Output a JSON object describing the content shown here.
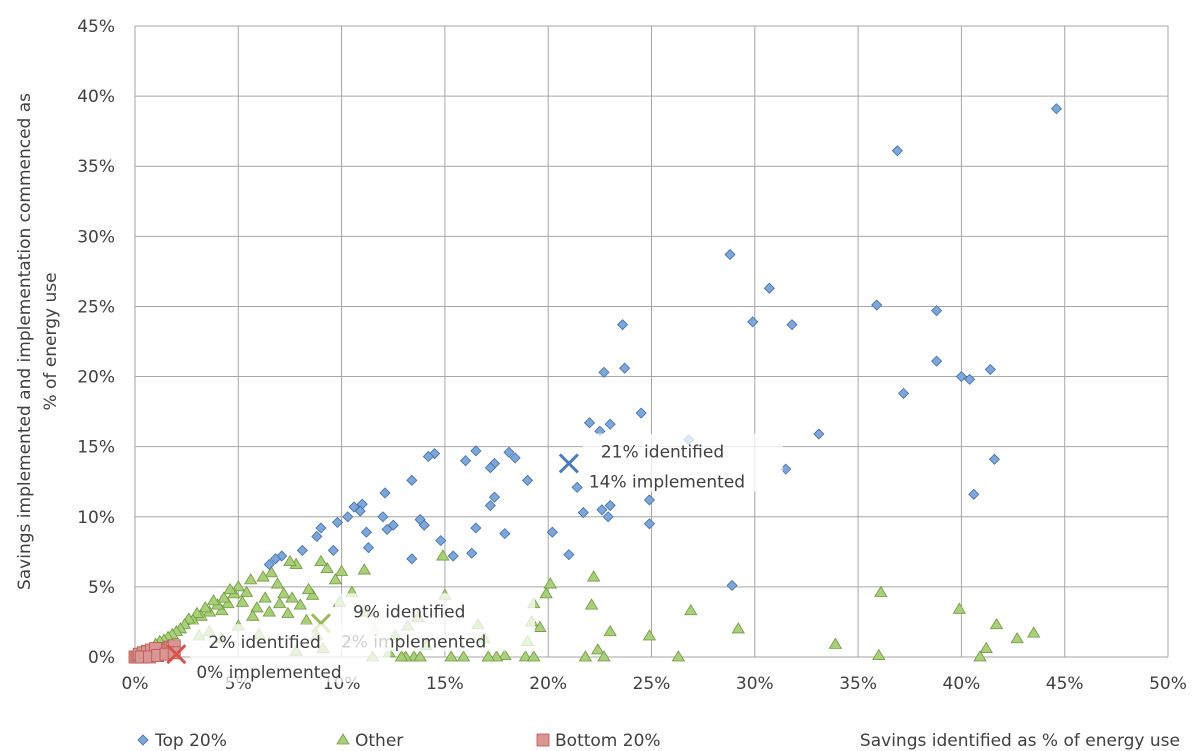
{
  "chart_data": {
    "type": "scatter",
    "xlabel": "Savings identified as % of energy use",
    "ylabel": "Savings implemented and implementation commenced as % of energy use",
    "xlim": [
      0,
      50
    ],
    "ylim": [
      0,
      45
    ],
    "x_ticks": [
      "0%",
      "5%",
      "10%",
      "15%",
      "20%",
      "25%",
      "30%",
      "35%",
      "40%",
      "45%",
      "50%"
    ],
    "y_ticks": [
      "0%",
      "5%",
      "10%",
      "15%",
      "20%",
      "25%",
      "30%",
      "35%",
      "40%",
      "45%"
    ],
    "grid": true,
    "legend_placement": "bottom-left",
    "series": [
      {
        "name": "Top 20%",
        "marker": "diamond",
        "color": "#7ea6d8",
        "points": [
          [
            44.6,
            39.1
          ],
          [
            36.9,
            36.1
          ],
          [
            28.8,
            28.7
          ],
          [
            30.7,
            26.3
          ],
          [
            29.9,
            23.9
          ],
          [
            31.8,
            23.7
          ],
          [
            23.6,
            23.7
          ],
          [
            35.9,
            25.1
          ],
          [
            38.8,
            24.7
          ],
          [
            38.8,
            21.1
          ],
          [
            41.4,
            20.5
          ],
          [
            40,
            20
          ],
          [
            40.4,
            19.8
          ],
          [
            37.2,
            18.8
          ],
          [
            23.7,
            20.6
          ],
          [
            22.7,
            20.3
          ],
          [
            24.5,
            17.4
          ],
          [
            22,
            16.7
          ],
          [
            23,
            16.6
          ],
          [
            22.5,
            16.1
          ],
          [
            33.1,
            15.9
          ],
          [
            26.8,
            15.5
          ],
          [
            41.6,
            14.1
          ],
          [
            31.5,
            13.4
          ],
          [
            40.6,
            11.6
          ],
          [
            24.9,
            11.2
          ],
          [
            21.4,
            12.1
          ],
          [
            23,
            10.8
          ],
          [
            22.6,
            10.5
          ],
          [
            22.9,
            10
          ],
          [
            21.7,
            10.3
          ],
          [
            24.9,
            9.5
          ],
          [
            21,
            7.3
          ],
          [
            20.2,
            8.9
          ],
          [
            28.9,
            5.1
          ],
          [
            18.1,
            14.6
          ],
          [
            18.4,
            14.2
          ],
          [
            16.5,
            14.7
          ],
          [
            16,
            14
          ],
          [
            17.4,
            13.8
          ],
          [
            17.2,
            13.5
          ],
          [
            19,
            12.6
          ],
          [
            17.4,
            11.4
          ],
          [
            17.2,
            10.8
          ],
          [
            17.9,
            8.8
          ],
          [
            16.5,
            9.2
          ],
          [
            16.3,
            7.4
          ],
          [
            14.5,
            14.5
          ],
          [
            14.2,
            14.3
          ],
          [
            13.4,
            12.6
          ],
          [
            13.8,
            9.8
          ],
          [
            14,
            9.4
          ],
          [
            14.8,
            8.3
          ],
          [
            15.4,
            7.2
          ],
          [
            13.4,
            7
          ],
          [
            12.1,
            11.7
          ],
          [
            11,
            10.9
          ],
          [
            10.6,
            10.7
          ],
          [
            10.9,
            10.4
          ],
          [
            10.3,
            10
          ],
          [
            9.8,
            9.6
          ],
          [
            9,
            9.2
          ],
          [
            8.8,
            8.6
          ],
          [
            11.2,
            8.9
          ],
          [
            12.5,
            9.4
          ],
          [
            12.2,
            9.1
          ],
          [
            12,
            10
          ],
          [
            11.3,
            7.8
          ],
          [
            9.6,
            7.6
          ],
          [
            8.1,
            7.6
          ],
          [
            7.1,
            7.2
          ],
          [
            6.8,
            7
          ],
          [
            6.5,
            6.6
          ]
        ]
      },
      {
        "name": "Other",
        "marker": "triangle",
        "color": "#a9cf7a",
        "points": [
          [
            36.1,
            4.6
          ],
          [
            39.9,
            3.4
          ],
          [
            41.7,
            2.3
          ],
          [
            43.5,
            1.7
          ],
          [
            42.7,
            1.3
          ],
          [
            41.2,
            0.6
          ],
          [
            40.9,
            0
          ],
          [
            33.9,
            0.9
          ],
          [
            36,
            0.1
          ],
          [
            29.2,
            2
          ],
          [
            26.9,
            3.3
          ],
          [
            26.3,
            0
          ],
          [
            24.9,
            1.5
          ],
          [
            23,
            1.8
          ],
          [
            22.2,
            5.7
          ],
          [
            22.1,
            3.7
          ],
          [
            22.4,
            0.5
          ],
          [
            22.7,
            0
          ],
          [
            21.8,
            0
          ],
          [
            20.1,
            5.2
          ],
          [
            19.9,
            4.5
          ],
          [
            19.3,
            3.8
          ],
          [
            19.6,
            2.1
          ],
          [
            19.2,
            2.5
          ],
          [
            19,
            1.1
          ],
          [
            18.9,
            0
          ],
          [
            19.3,
            0
          ],
          [
            17.9,
            0.1
          ],
          [
            17.5,
            0
          ],
          [
            16.6,
            2.3
          ],
          [
            16.9,
            1.3
          ],
          [
            17.1,
            0
          ],
          [
            15.9,
            0
          ],
          [
            15.3,
            0
          ],
          [
            15,
            4.4
          ],
          [
            14.9,
            7.2
          ],
          [
            13.7,
            2.8
          ],
          [
            13.2,
            2.2
          ],
          [
            13.5,
            0
          ],
          [
            13.8,
            0
          ],
          [
            13.1,
            0
          ],
          [
            12.9,
            0
          ],
          [
            12.3,
            0.3
          ],
          [
            11.5,
            0
          ],
          [
            11.2,
            3.2
          ],
          [
            11.1,
            6.2
          ],
          [
            10,
            6.1
          ],
          [
            9.7,
            5.5
          ],
          [
            10.5,
            4.6
          ],
          [
            9.9,
            3.9
          ],
          [
            9.3,
            6.3
          ],
          [
            9,
            6.8
          ],
          [
            8.6,
            4.4
          ],
          [
            8.4,
            4.8
          ],
          [
            8,
            3.7
          ],
          [
            7.8,
            6.6
          ],
          [
            7.5,
            6.8
          ],
          [
            7.6,
            4.2
          ],
          [
            7.2,
            4.5
          ],
          [
            7,
            3.8
          ],
          [
            7.4,
            3.1
          ],
          [
            6.6,
            6
          ],
          [
            6.9,
            5.2
          ],
          [
            6.5,
            3.2
          ],
          [
            6.2,
            5.7
          ],
          [
            6.3,
            4.2
          ],
          [
            5.9,
            3.5
          ],
          [
            5.6,
            5.5
          ],
          [
            5.4,
            4.6
          ],
          [
            5.2,
            3.9
          ],
          [
            5,
            5
          ],
          [
            4.8,
            4.5
          ],
          [
            4.6,
            4.8
          ],
          [
            4.5,
            3.8
          ],
          [
            4.3,
            4.2
          ],
          [
            4.2,
            3.3
          ],
          [
            4,
            3.7
          ],
          [
            3.8,
            4
          ],
          [
            3.6,
            3.2
          ],
          [
            3.4,
            3.5
          ],
          [
            3.2,
            2.9
          ],
          [
            3,
            3.1
          ],
          [
            2.8,
            2.6
          ],
          [
            2.6,
            2.7
          ],
          [
            2.4,
            2.3
          ],
          [
            2.2,
            2
          ],
          [
            2,
            1.8
          ],
          [
            1.8,
            1.6
          ],
          [
            1.6,
            1.4
          ],
          [
            1.4,
            1.2
          ],
          [
            1.2,
            1.1
          ],
          [
            1,
            0.9
          ],
          [
            3.1,
            1.5
          ],
          [
            3.6,
            1.8
          ],
          [
            4.2,
            1.3
          ],
          [
            5,
            2.2
          ],
          [
            5.7,
            2.9
          ],
          [
            6,
            1.6
          ],
          [
            8.3,
            2.6
          ],
          [
            8.8,
            1.5
          ],
          [
            9.1,
            0.6
          ],
          [
            7.8,
            0.4
          ],
          [
            10.4,
            1.3
          ],
          [
            11.6,
            1.9
          ],
          [
            12.6,
            1.5
          ],
          [
            14.1,
            0.8
          ]
        ]
      },
      {
        "name": "Bottom 20%",
        "marker": "square",
        "color": "#d99694",
        "points": [
          [
            0,
            0
          ],
          [
            0.1,
            0
          ],
          [
            0.2,
            0
          ],
          [
            0.3,
            0.1
          ],
          [
            0.4,
            0
          ],
          [
            0.5,
            0.1
          ],
          [
            0.6,
            0.2
          ],
          [
            0.7,
            0.2
          ],
          [
            0.8,
            0.1
          ],
          [
            0.9,
            0.3
          ],
          [
            1,
            0.2
          ],
          [
            1.1,
            0.4
          ],
          [
            1.2,
            0.3
          ],
          [
            1.3,
            0.5
          ],
          [
            1.4,
            0.4
          ],
          [
            1.5,
            0.6
          ],
          [
            1.6,
            0.5
          ],
          [
            1.7,
            0.7
          ],
          [
            1.8,
            0.6
          ],
          [
            1.9,
            0.8
          ],
          [
            0.2,
            0.2
          ],
          [
            0.4,
            0.3
          ],
          [
            0.6,
            0.4
          ],
          [
            0.8,
            0.5
          ],
          [
            1,
            0.6
          ],
          [
            0.3,
            0
          ],
          [
            0.7,
            0
          ],
          [
            1.1,
            0.1
          ],
          [
            1.5,
            0.2
          ],
          [
            1.9,
            0.3
          ]
        ]
      }
    ],
    "averages": [
      {
        "series": "Top 20%",
        "x": 21,
        "y": 13.8,
        "color": "#4a7ebb",
        "line1": "21% identified",
        "line2": "14% implemented"
      },
      {
        "series": "Other",
        "x": 9,
        "y": 2.4,
        "color": "#9bbb59",
        "line1": "9% identified",
        "line2": "2% implemented"
      },
      {
        "series": "Bottom 20%",
        "x": 2,
        "y": 0.2,
        "color": "#d9534f",
        "line1": "2% identified",
        "line2": "0% implemented"
      }
    ]
  }
}
